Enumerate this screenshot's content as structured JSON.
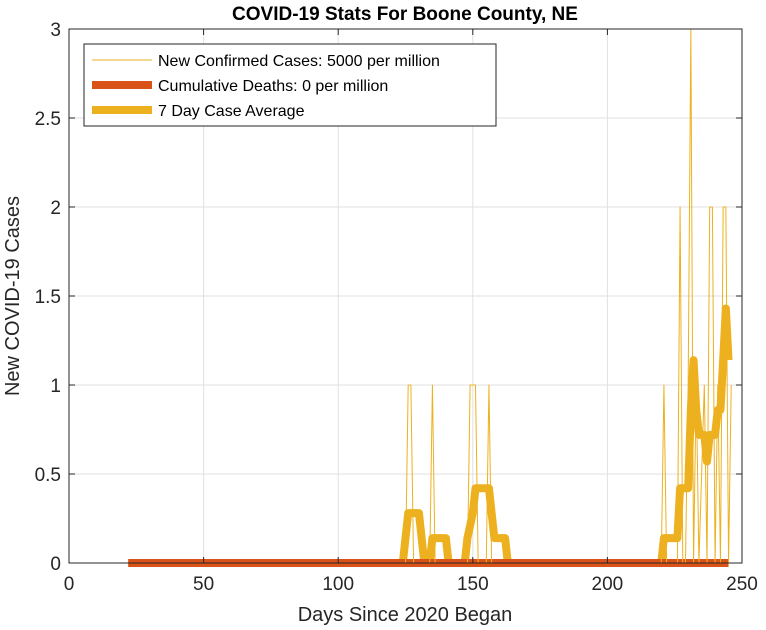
{
  "chart_data": {
    "type": "line",
    "title": "COVID-19 Stats For Boone County, NE",
    "xlabel": "Days Since 2020 Began",
    "ylabel": "New COVID-19 Cases",
    "xlim": [
      0,
      250
    ],
    "ylim": [
      0,
      3
    ],
    "xticks": [
      0,
      50,
      100,
      150,
      200,
      250
    ],
    "yticks": [
      0,
      0.5,
      1,
      1.5,
      2,
      2.5,
      3
    ],
    "ytick_labels": [
      "0",
      "0.5",
      "1",
      "1.5",
      "2",
      "2.5",
      "3"
    ],
    "grid": true,
    "legend_position": "top-left",
    "series": [
      {
        "name": "New Confirmed Cases: 5000 per million",
        "color": "#EDB120",
        "style": "thin",
        "points": [
          [
            22,
            0
          ],
          [
            125,
            0
          ],
          [
            126,
            1
          ],
          [
            127,
            1
          ],
          [
            128,
            0
          ],
          [
            134,
            0
          ],
          [
            135,
            1
          ],
          [
            136,
            0
          ],
          [
            148,
            0
          ],
          [
            149,
            1
          ],
          [
            151,
            1
          ],
          [
            152,
            0
          ],
          [
            155,
            0
          ],
          [
            156,
            1
          ],
          [
            157,
            0
          ],
          [
            220,
            0
          ],
          [
            221,
            1
          ],
          [
            222,
            0
          ],
          [
            226,
            0
          ],
          [
            227,
            2
          ],
          [
            228,
            0
          ],
          [
            229,
            0
          ],
          [
            230,
            1
          ],
          [
            231,
            3
          ],
          [
            232,
            0
          ],
          [
            233,
            1
          ],
          [
            234,
            0
          ],
          [
            236,
            1
          ],
          [
            237,
            0
          ],
          [
            238,
            2
          ],
          [
            239,
            2
          ],
          [
            240,
            0
          ],
          [
            241,
            1
          ],
          [
            242,
            0
          ],
          [
            243,
            2
          ],
          [
            244,
            2
          ],
          [
            245,
            0
          ],
          [
            246,
            1
          ]
        ]
      },
      {
        "name": "Cumulative Deaths: 0 per million",
        "color": "#D95319",
        "style": "thick",
        "points": [
          [
            22,
            0
          ],
          [
            245,
            0
          ]
        ]
      },
      {
        "name": "7 Day Case Average",
        "color": "#EDB120",
        "style": "thick",
        "points": [
          [
            22,
            0
          ],
          [
            124,
            0
          ],
          [
            125,
            0.14
          ],
          [
            126,
            0.28
          ],
          [
            130,
            0.28
          ],
          [
            131,
            0.14
          ],
          [
            132,
            0
          ],
          [
            134,
            0
          ],
          [
            135,
            0.14
          ],
          [
            140,
            0.14
          ],
          [
            141,
            0
          ],
          [
            147,
            0
          ],
          [
            148,
            0.14
          ],
          [
            150,
            0.28
          ],
          [
            151,
            0.42
          ],
          [
            156,
            0.42
          ],
          [
            157,
            0.28
          ],
          [
            158,
            0.14
          ],
          [
            162,
            0.14
          ],
          [
            163,
            0
          ],
          [
            220,
            0
          ],
          [
            221,
            0.14
          ],
          [
            226,
            0.14
          ],
          [
            227,
            0.42
          ],
          [
            230,
            0.42
          ],
          [
            231,
            0.86
          ],
          [
            232,
            1.14
          ],
          [
            233,
            0.86
          ],
          [
            234,
            0.72
          ],
          [
            236,
            0.72
          ],
          [
            237,
            0.57
          ],
          [
            238,
            0.72
          ],
          [
            240,
            0.72
          ],
          [
            241,
            0.86
          ],
          [
            242,
            0.86
          ],
          [
            243,
            1.14
          ],
          [
            244,
            1.43
          ],
          [
            245,
            1.14
          ]
        ]
      }
    ]
  }
}
